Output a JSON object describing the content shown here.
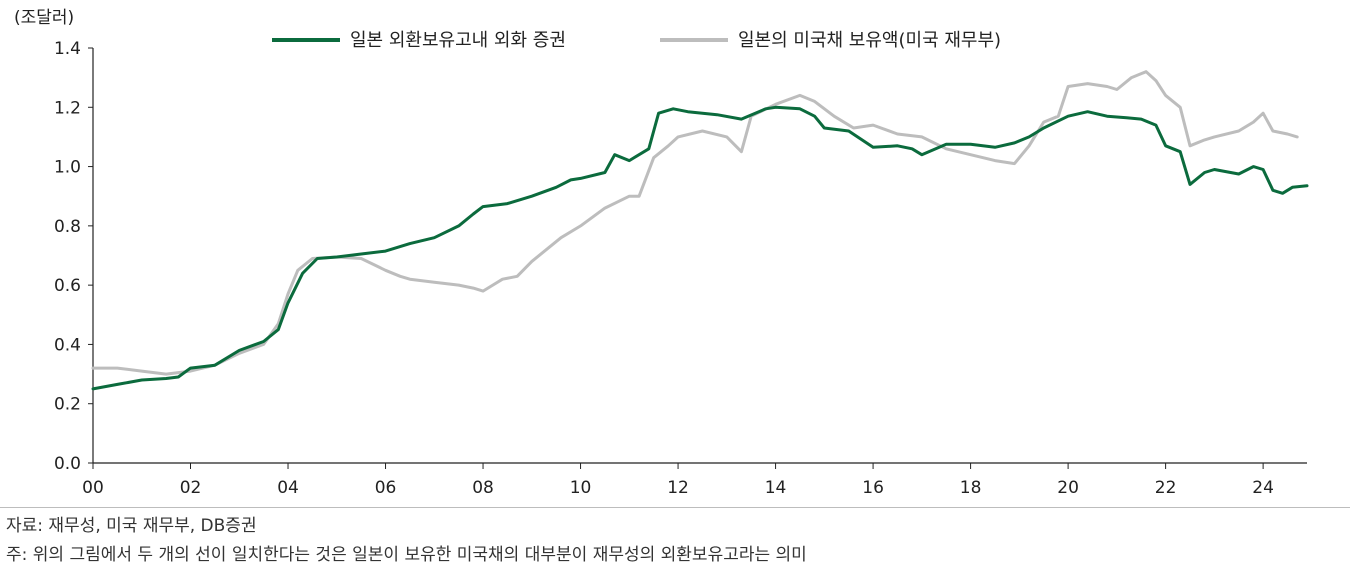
{
  "chart_data": {
    "type": "line",
    "unit_label": "(조달러)",
    "y_ticks": [
      "0.0",
      "0.2",
      "0.4",
      "0.6",
      "0.8",
      "1.0",
      "1.2",
      "1.4"
    ],
    "ylim": [
      0,
      1.4
    ],
    "x_ticks": [
      "00",
      "02",
      "04",
      "06",
      "08",
      "10",
      "12",
      "14",
      "16",
      "18",
      "20",
      "22",
      "24"
    ],
    "xlim": [
      2000,
      2024.9
    ],
    "grid": false,
    "legend_position": "top",
    "series": [
      {
        "name": "일본 외환보유고내 외화 증권",
        "color": "#0b6b3d",
        "points": [
          [
            2000.0,
            0.25
          ],
          [
            2000.5,
            0.265
          ],
          [
            2001.0,
            0.28
          ],
          [
            2001.5,
            0.285
          ],
          [
            2001.75,
            0.29
          ],
          [
            2002.0,
            0.32
          ],
          [
            2002.5,
            0.33
          ],
          [
            2003.0,
            0.38
          ],
          [
            2003.5,
            0.41
          ],
          [
            2003.8,
            0.45
          ],
          [
            2004.0,
            0.54
          ],
          [
            2004.3,
            0.64
          ],
          [
            2004.6,
            0.69
          ],
          [
            2005.0,
            0.695
          ],
          [
            2005.5,
            0.705
          ],
          [
            2006.0,
            0.715
          ],
          [
            2006.5,
            0.74
          ],
          [
            2007.0,
            0.76
          ],
          [
            2007.5,
            0.8
          ],
          [
            2007.8,
            0.84
          ],
          [
            2008.0,
            0.865
          ],
          [
            2008.5,
            0.875
          ],
          [
            2009.0,
            0.9
          ],
          [
            2009.5,
            0.93
          ],
          [
            2009.8,
            0.955
          ],
          [
            2010.0,
            0.96
          ],
          [
            2010.5,
            0.98
          ],
          [
            2010.7,
            1.04
          ],
          [
            2011.0,
            1.02
          ],
          [
            2011.4,
            1.06
          ],
          [
            2011.6,
            1.18
          ],
          [
            2011.9,
            1.195
          ],
          [
            2012.2,
            1.185
          ],
          [
            2012.8,
            1.175
          ],
          [
            2013.3,
            1.16
          ],
          [
            2013.8,
            1.195
          ],
          [
            2014.0,
            1.2
          ],
          [
            2014.5,
            1.195
          ],
          [
            2014.8,
            1.17
          ],
          [
            2015.0,
            1.13
          ],
          [
            2015.5,
            1.12
          ],
          [
            2016.0,
            1.065
          ],
          [
            2016.5,
            1.07
          ],
          [
            2016.8,
            1.06
          ],
          [
            2017.0,
            1.04
          ],
          [
            2017.5,
            1.075
          ],
          [
            2018.0,
            1.075
          ],
          [
            2018.5,
            1.065
          ],
          [
            2018.9,
            1.08
          ],
          [
            2019.2,
            1.1
          ],
          [
            2019.5,
            1.13
          ],
          [
            2020.0,
            1.17
          ],
          [
            2020.4,
            1.185
          ],
          [
            2020.8,
            1.17
          ],
          [
            2021.2,
            1.165
          ],
          [
            2021.5,
            1.16
          ],
          [
            2021.8,
            1.14
          ],
          [
            2022.0,
            1.07
          ],
          [
            2022.3,
            1.05
          ],
          [
            2022.5,
            0.94
          ],
          [
            2022.8,
            0.98
          ],
          [
            2023.0,
            0.99
          ],
          [
            2023.5,
            0.975
          ],
          [
            2023.8,
            1.0
          ],
          [
            2024.0,
            0.99
          ],
          [
            2024.2,
            0.92
          ],
          [
            2024.4,
            0.91
          ],
          [
            2024.6,
            0.93
          ],
          [
            2024.9,
            0.935
          ]
        ]
      },
      {
        "name": "일본의 미국채 보유액(미국 재무부)",
        "color": "#bdbdbd",
        "points": [
          [
            2000.0,
            0.32
          ],
          [
            2000.5,
            0.32
          ],
          [
            2001.0,
            0.31
          ],
          [
            2001.5,
            0.3
          ],
          [
            2002.0,
            0.31
          ],
          [
            2002.5,
            0.33
          ],
          [
            2003.0,
            0.37
          ],
          [
            2003.5,
            0.4
          ],
          [
            2003.8,
            0.47
          ],
          [
            2004.0,
            0.57
          ],
          [
            2004.2,
            0.65
          ],
          [
            2004.5,
            0.69
          ],
          [
            2005.0,
            0.695
          ],
          [
            2005.5,
            0.69
          ],
          [
            2006.0,
            0.65
          ],
          [
            2006.3,
            0.63
          ],
          [
            2006.5,
            0.62
          ],
          [
            2007.0,
            0.61
          ],
          [
            2007.5,
            0.6
          ],
          [
            2007.8,
            0.59
          ],
          [
            2008.0,
            0.58
          ],
          [
            2008.2,
            0.6
          ],
          [
            2008.4,
            0.62
          ],
          [
            2008.7,
            0.63
          ],
          [
            2009.0,
            0.68
          ],
          [
            2009.3,
            0.72
          ],
          [
            2009.6,
            0.76
          ],
          [
            2010.0,
            0.8
          ],
          [
            2010.5,
            0.86
          ],
          [
            2011.0,
            0.9
          ],
          [
            2011.2,
            0.9
          ],
          [
            2011.5,
            1.03
          ],
          [
            2011.8,
            1.07
          ],
          [
            2012.0,
            1.1
          ],
          [
            2012.5,
            1.12
          ],
          [
            2013.0,
            1.1
          ],
          [
            2013.3,
            1.05
          ],
          [
            2013.5,
            1.17
          ],
          [
            2014.0,
            1.21
          ],
          [
            2014.5,
            1.24
          ],
          [
            2014.8,
            1.22
          ],
          [
            2015.2,
            1.17
          ],
          [
            2015.6,
            1.13
          ],
          [
            2016.0,
            1.14
          ],
          [
            2016.5,
            1.11
          ],
          [
            2017.0,
            1.1
          ],
          [
            2017.5,
            1.06
          ],
          [
            2018.0,
            1.04
          ],
          [
            2018.5,
            1.02
          ],
          [
            2018.9,
            1.01
          ],
          [
            2019.2,
            1.07
          ],
          [
            2019.5,
            1.15
          ],
          [
            2019.8,
            1.17
          ],
          [
            2020.0,
            1.27
          ],
          [
            2020.4,
            1.28
          ],
          [
            2020.8,
            1.27
          ],
          [
            2021.0,
            1.26
          ],
          [
            2021.3,
            1.3
          ],
          [
            2021.6,
            1.32
          ],
          [
            2021.8,
            1.29
          ],
          [
            2022.0,
            1.24
          ],
          [
            2022.3,
            1.2
          ],
          [
            2022.5,
            1.07
          ],
          [
            2022.8,
            1.09
          ],
          [
            2023.0,
            1.1
          ],
          [
            2023.5,
            1.12
          ],
          [
            2023.8,
            1.15
          ],
          [
            2024.0,
            1.18
          ],
          [
            2024.2,
            1.12
          ],
          [
            2024.5,
            1.11
          ],
          [
            2024.7,
            1.1
          ]
        ]
      }
    ]
  },
  "notes": {
    "source": "자료:  재무성, 미국 재무부, DB증권",
    "footnote": "주:  위의 그림에서 두 개의 선이 일치한다는 것은 일본이 보유한 미국채의 대부분이 재무성의 외환보유고라는 의미"
  }
}
